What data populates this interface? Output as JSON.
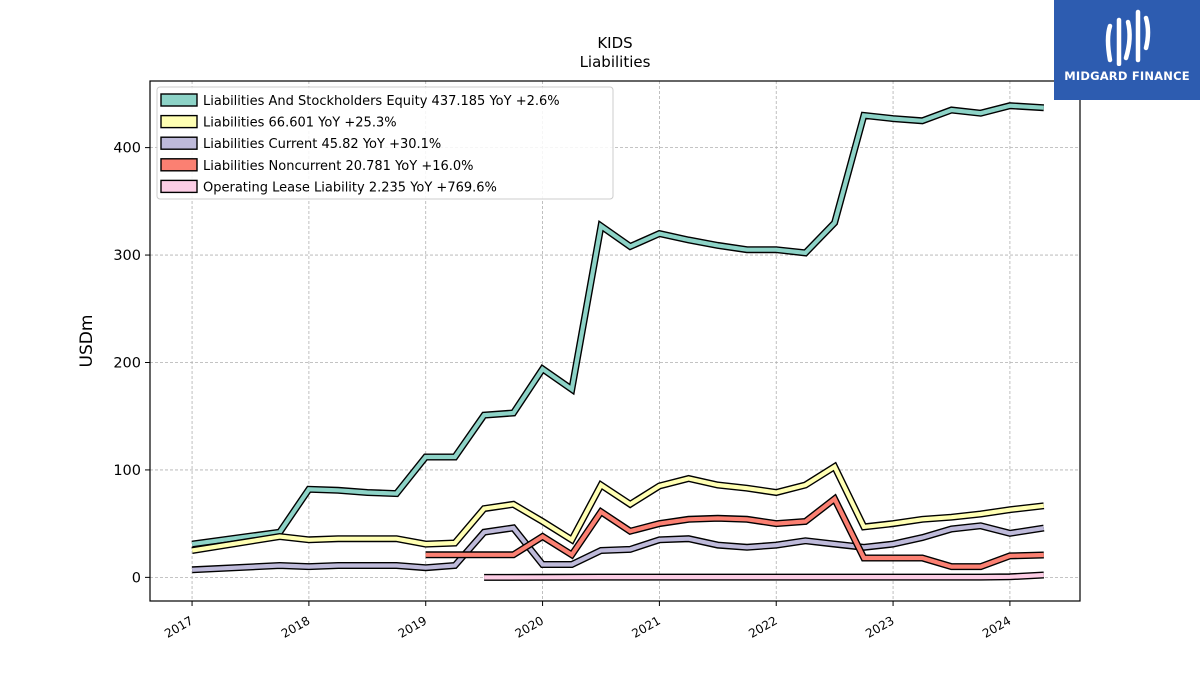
{
  "chart_data": {
    "type": "line",
    "title": "KIDS",
    "subtitle": "Liabilities",
    "ylabel": "USDm",
    "xlabel": "",
    "ylim": [
      -22,
      462
    ],
    "xlim": [
      2016.64,
      2024.6
    ],
    "yticks": [
      0,
      100,
      200,
      300,
      400
    ],
    "xticks": [
      2017,
      2018,
      2019,
      2020,
      2021,
      2022,
      2023,
      2024
    ],
    "xtick_labels": [
      "2017",
      "2018",
      "2019",
      "2020",
      "2021",
      "2022",
      "2023",
      "2024"
    ],
    "grid": true,
    "legend_position": "upper-left",
    "series": [
      {
        "name": "Liabilities And Stockholders Equity  437.185 YoY +2.6%",
        "color": "#8dd3c7",
        "x": [
          2017.0,
          2017.75,
          2018.0,
          2018.25,
          2018.5,
          2018.75,
          2019.0,
          2019.25,
          2019.5,
          2019.75,
          2020.0,
          2020.25,
          2020.5,
          2020.75,
          2021.0,
          2021.25,
          2021.5,
          2021.75,
          2022.0,
          2022.25,
          2022.5,
          2022.75,
          2023.0,
          2023.25,
          2023.5,
          2023.75,
          2024.0,
          2024.29
        ],
        "y": [
          31,
          42,
          82,
          81,
          79,
          78,
          112,
          112,
          151,
          153,
          194,
          175,
          327,
          308,
          320,
          314,
          309,
          305,
          305,
          302,
          330,
          430,
          427,
          425,
          435,
          432,
          439,
          437.185
        ]
      },
      {
        "name": "Liabilities  66.601 YoY +25.3%",
        "color": "#ffffb3",
        "x": [
          2017.0,
          2017.75,
          2018.0,
          2018.25,
          2018.5,
          2018.75,
          2019.0,
          2019.25,
          2019.5,
          2019.75,
          2020.0,
          2020.25,
          2020.5,
          2020.75,
          2021.0,
          2021.25,
          2021.5,
          2021.75,
          2022.0,
          2022.25,
          2022.5,
          2022.75,
          2023.0,
          2023.25,
          2023.5,
          2023.75,
          2024.0,
          2024.29
        ],
        "y": [
          25,
          38,
          35,
          36,
          36,
          36,
          31,
          32,
          64,
          68,
          52,
          35,
          86,
          68,
          85,
          92,
          86,
          83,
          79,
          86,
          103,
          47,
          50,
          54,
          56,
          59,
          63,
          66.601
        ]
      },
      {
        "name": "Liabilities Current  45.82 YoY +30.1%",
        "color": "#bebada",
        "x": [
          2017.0,
          2017.75,
          2018.0,
          2018.25,
          2018.5,
          2018.75,
          2019.0,
          2019.25,
          2019.5,
          2019.75,
          2020.0,
          2020.25,
          2020.5,
          2020.75,
          2021.0,
          2021.25,
          2021.5,
          2021.75,
          2022.0,
          2022.25,
          2022.5,
          2022.75,
          2023.0,
          2023.25,
          2023.5,
          2023.75,
          2024.0,
          2024.29
        ],
        "y": [
          7,
          11,
          10,
          11,
          11,
          11,
          9,
          11,
          42,
          46,
          12,
          12,
          25,
          26,
          35,
          36,
          30,
          28,
          30,
          34,
          31,
          28,
          31,
          37,
          45,
          48,
          41,
          45.82
        ]
      },
      {
        "name": "Liabilities Noncurrent  20.781 YoY +16.0%",
        "color": "#fb8072",
        "x": [
          2019.0,
          2019.5,
          2019.75,
          2020.0,
          2020.25,
          2020.5,
          2020.75,
          2021.0,
          2021.25,
          2021.5,
          2021.75,
          2022.0,
          2022.25,
          2022.5,
          2022.75,
          2023.0,
          2023.25,
          2023.5,
          2023.75,
          2024.0,
          2024.29
        ],
        "y": [
          21,
          21,
          21,
          38,
          21,
          61,
          43,
          50,
          54,
          55,
          54,
          50,
          52,
          73,
          18,
          18,
          18,
          10,
          10,
          20,
          20.781
        ]
      },
      {
        "name": "Operating Lease Liability  2.235 YoY +769.6%",
        "color": "#fccde5",
        "x": [
          2019.5,
          2020.0,
          2020.5,
          2021.0,
          2021.5,
          2022.0,
          2022.5,
          2023.0,
          2023.5,
          2023.75,
          2024.0,
          2024.29
        ],
        "y": [
          0,
          0.1,
          0.2,
          0.2,
          0.2,
          0.2,
          0.2,
          0.2,
          0.2,
          0.25,
          0.5,
          2.235
        ]
      }
    ]
  },
  "logo": {
    "text": "MIDGARD FINANCE",
    "background": "#2d5cb0"
  }
}
